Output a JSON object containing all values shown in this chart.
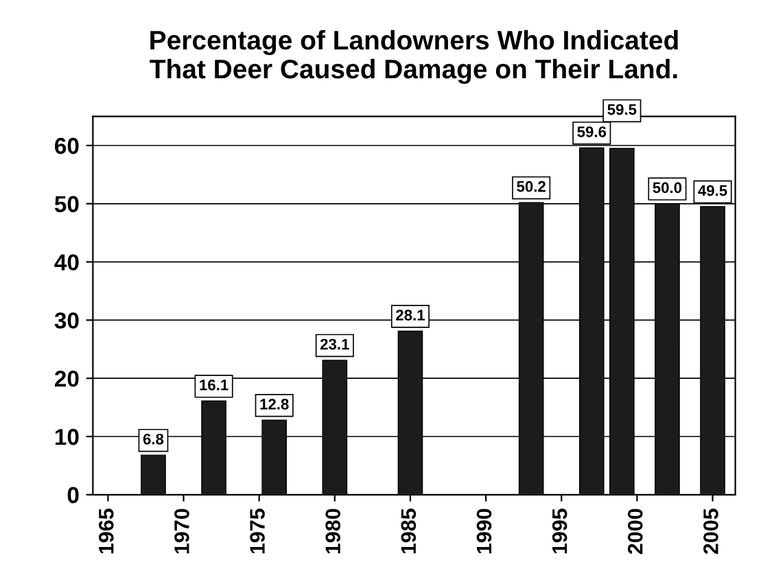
{
  "chart_data": {
    "type": "bar",
    "title": "Percentage of Landowners Who Indicated\nThat Deer Caused Damage on Their Land.",
    "x": [
      1968,
      1972,
      1976,
      1980,
      1985,
      1993,
      1997,
      1999,
      2002,
      2005
    ],
    "values": [
      6.8,
      16.1,
      12.8,
      23.1,
      28.1,
      50.2,
      59.6,
      59.5,
      50.0,
      49.5
    ],
    "value_labels": [
      "6.8",
      "16.1",
      "12.8",
      "23.1",
      "28.1",
      "50.2",
      "59.6",
      "59.5",
      "50.0",
      "49.5"
    ],
    "color": "#1c1c1c",
    "xlim": [
      1964,
      2006.5
    ],
    "xticks": [
      1965,
      1970,
      1975,
      1980,
      1985,
      1990,
      1995,
      2000,
      2005
    ],
    "ylim": [
      0,
      65
    ],
    "yticks": [
      0,
      10,
      20,
      30,
      40,
      50,
      60
    ],
    "grid": "y"
  }
}
